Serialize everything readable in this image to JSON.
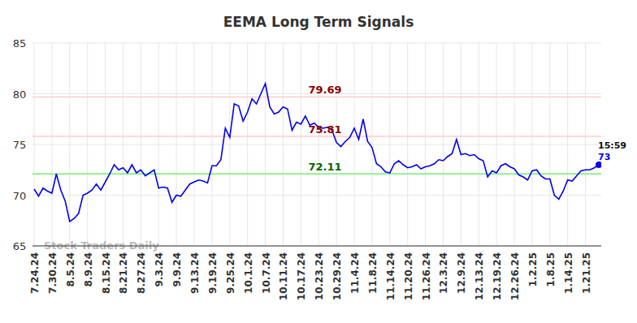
{
  "chart_data": {
    "type": "line",
    "title": "EEMA Long Term Signals",
    "watermark": "Stock Traders Daily",
    "color": "#0000ee",
    "grid": true,
    "ylim": [
      65,
      85
    ],
    "yticks": [
      65,
      70,
      75,
      80,
      85
    ],
    "categories": [
      "7.24.24",
      null,
      null,
      null,
      "7.30.24",
      null,
      null,
      null,
      "8.5.24",
      null,
      null,
      null,
      "8.9.24",
      null,
      null,
      null,
      "8.15.24",
      null,
      null,
      null,
      "8.21.24",
      null,
      null,
      null,
      "8.27.24",
      null,
      null,
      null,
      "9.3.24",
      null,
      null,
      null,
      "9.9.24",
      null,
      null,
      null,
      "9.13.24",
      null,
      null,
      null,
      "9.19.24",
      null,
      null,
      null,
      "9.25.24",
      null,
      null,
      null,
      "10.1.24",
      null,
      null,
      null,
      "10.7.24",
      null,
      null,
      null,
      "10.11.24",
      null,
      null,
      null,
      "10.17.24",
      null,
      null,
      null,
      "10.23.24",
      null,
      null,
      null,
      "10.29.24",
      null,
      null,
      null,
      "11.4.24",
      null,
      null,
      null,
      "11.8.24",
      null,
      null,
      null,
      "11.14.24",
      null,
      null,
      null,
      "11.20.24",
      null,
      null,
      null,
      "11.26.24",
      null,
      null,
      null,
      "12.3.24",
      null,
      null,
      null,
      "12.9.24",
      null,
      null,
      null,
      "12.13.24",
      null,
      null,
      null,
      "12.19.24",
      null,
      null,
      null,
      "12.26.24",
      null,
      null,
      null,
      "1.2.25",
      null,
      null,
      null,
      "1.8.25",
      null,
      null,
      null,
      "1.14.25",
      null,
      null,
      null,
      "1.21.25",
      null,
      null,
      null
    ],
    "values": [
      70.6,
      69.9,
      70.7,
      70.4,
      70.2,
      72.1,
      70.5,
      69.4,
      67.4,
      67.7,
      68.2,
      70.0,
      70.2,
      70.5,
      71.1,
      70.5,
      71.3,
      72.1,
      73.0,
      72.5,
      72.7,
      72.2,
      73.0,
      72.2,
      72.5,
      71.9,
      72.2,
      72.5,
      70.7,
      70.8,
      70.7,
      69.3,
      70.0,
      69.9,
      70.5,
      71.1,
      71.3,
      71.5,
      71.4,
      71.2,
      72.9,
      72.9,
      73.5,
      76.6,
      75.7,
      79.0,
      78.8,
      77.3,
      78.2,
      79.5,
      79.0,
      80.0,
      81.0,
      78.7,
      78.0,
      78.2,
      78.7,
      78.5,
      76.4,
      77.2,
      77.0,
      77.8,
      76.9,
      77.1,
      76.7,
      76.6,
      76.7,
      76.4,
      75.2,
      74.8,
      75.3,
      75.7,
      76.6,
      75.5,
      77.5,
      75.3,
      74.7,
      73.1,
      72.8,
      72.3,
      72.2,
      73.1,
      73.4,
      73.0,
      72.7,
      72.8,
      73.0,
      72.6,
      72.8,
      72.9,
      73.1,
      73.5,
      73.4,
      73.8,
      74.1,
      75.5,
      74.0,
      74.1,
      73.9,
      74.0,
      73.6,
      73.4,
      71.8,
      72.4,
      72.2,
      72.9,
      73.1,
      72.8,
      72.6,
      72.0,
      71.8,
      71.5,
      72.4,
      72.5,
      71.9,
      71.6,
      71.6,
      70.0,
      69.6,
      70.4,
      71.5,
      71.4,
      71.9,
      72.4,
      72.5,
      72.5,
      72.7,
      73.0
    ],
    "annotations": [
      {
        "text": "79.69",
        "value": 79.69,
        "color": "#8b0000"
      },
      {
        "text": "75.81",
        "value": 75.81,
        "color": "#8b0000"
      },
      {
        "text": "72.11",
        "value": 72.11,
        "color": "#006400"
      }
    ],
    "last_label": {
      "time": "15:59",
      "value": 73
    }
  }
}
